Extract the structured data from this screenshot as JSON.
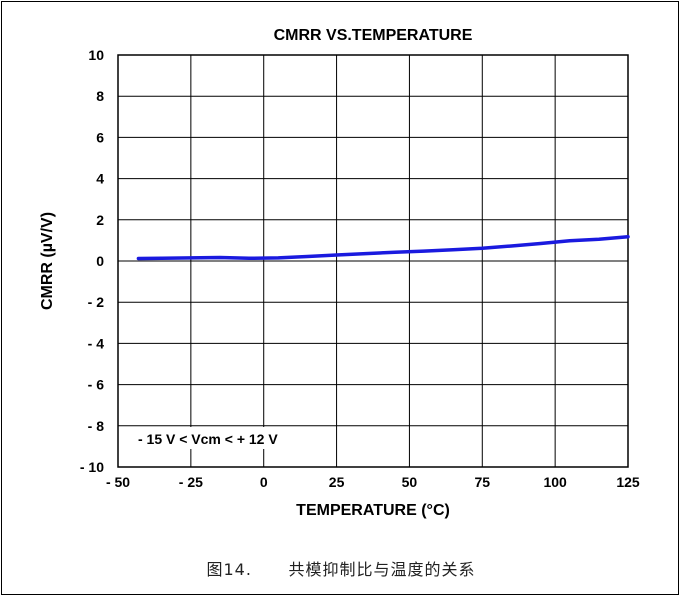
{
  "chart_data": {
    "type": "line",
    "title": "CMRR VS.TEMPERATURE",
    "xlabel": "TEMPERATURE (°C)",
    "ylabel": "CMRR (µV/V)",
    "xlim": [
      -50,
      125
    ],
    "ylim": [
      -10,
      10
    ],
    "x_ticks": [
      {
        "value": -50,
        "label": "- 50"
      },
      {
        "value": -25,
        "label": "- 25"
      },
      {
        "value": 0,
        "label": "0"
      },
      {
        "value": 25,
        "label": "25"
      },
      {
        "value": 50,
        "label": "50"
      },
      {
        "value": 75,
        "label": "75"
      },
      {
        "value": 100,
        "label": "100"
      },
      {
        "value": 125,
        "label": "125"
      }
    ],
    "y_ticks": [
      {
        "value": 10,
        "label": "10"
      },
      {
        "value": 8,
        "label": "8"
      },
      {
        "value": 6,
        "label": "6"
      },
      {
        "value": 4,
        "label": "4"
      },
      {
        "value": 2,
        "label": "2"
      },
      {
        "value": 0,
        "label": "0"
      },
      {
        "value": -2,
        "label": "- 2"
      },
      {
        "value": -4,
        "label": "- 4"
      },
      {
        "value": -6,
        "label": "- 6"
      },
      {
        "value": -8,
        "label": "- 8"
      },
      {
        "value": -10,
        "label": "- 10"
      }
    ],
    "grid": true,
    "annotation": "- 15 V < Vcm < + 12 V",
    "series": [
      {
        "color": "#1a1adf",
        "x": [
          -43,
          -35,
          -25,
          -15,
          -5,
          5,
          15,
          25,
          35,
          45,
          55,
          65,
          75,
          85,
          95,
          105,
          115,
          125
        ],
        "y": [
          0.12,
          0.13,
          0.15,
          0.17,
          0.13,
          0.15,
          0.22,
          0.29,
          0.36,
          0.42,
          0.48,
          0.55,
          0.62,
          0.73,
          0.85,
          0.98,
          1.06,
          1.18
        ]
      }
    ]
  },
  "caption": {
    "figure_number": "图14.",
    "text": "共模抑制比与温度的关系"
  }
}
